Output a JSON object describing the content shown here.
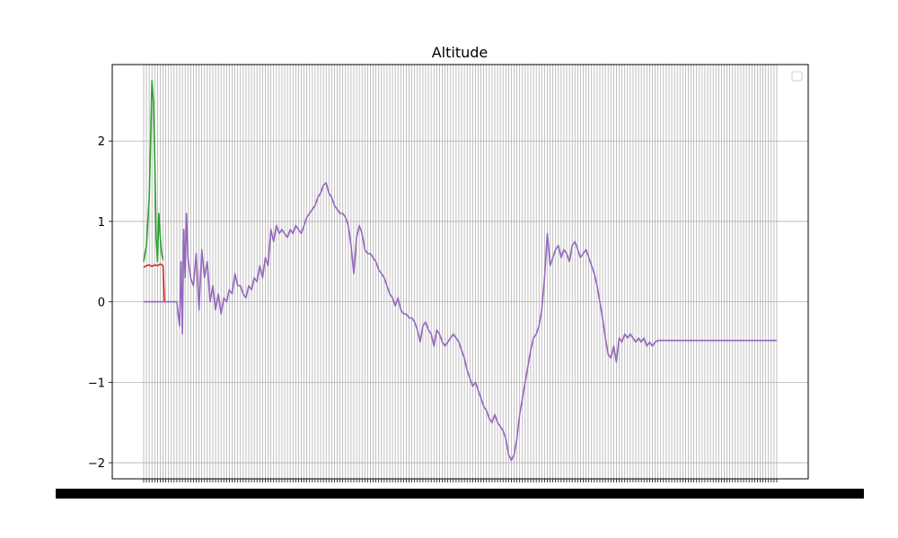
{
  "chart_data": {
    "type": "line",
    "title": "Altitude",
    "xlabel": "",
    "ylabel": "",
    "grid": true,
    "legend": "top-right",
    "ylim": [
      -2.2,
      2.95
    ],
    "y_ticks": [
      -2,
      -1,
      0,
      1,
      2
    ],
    "y_tick_labels": [
      "−2",
      "−1",
      "0",
      "1",
      "2"
    ],
    "x_tick_count": 230,
    "x_range": [
      0,
      229
    ],
    "series": [
      {
        "color": "#d62728",
        "points": [
          [
            0,
            0.43
          ],
          [
            1,
            0.45
          ],
          [
            2,
            0.46
          ],
          [
            3,
            0.44
          ],
          [
            4,
            0.46
          ],
          [
            5,
            0.45
          ],
          [
            6,
            0.47
          ],
          [
            7,
            0.45
          ],
          [
            7.5,
            0.0
          ]
        ]
      },
      {
        "color": "#2ca02c",
        "points": [
          [
            0,
            0.5
          ],
          [
            1,
            0.7
          ],
          [
            2,
            1.3
          ],
          [
            2.5,
            2.0
          ],
          [
            3,
            2.75
          ],
          [
            3.5,
            2.5
          ],
          [
            4,
            1.8
          ],
          [
            4.5,
            0.8
          ],
          [
            5,
            0.5
          ],
          [
            5.5,
            1.1
          ],
          [
            6,
            0.8
          ],
          [
            6.5,
            0.6
          ],
          [
            7,
            0.52
          ]
        ]
      },
      {
        "color": "#9467bd",
        "points": [
          [
            0,
            0.0
          ],
          [
            12,
            0.0
          ],
          [
            13,
            -0.3
          ],
          [
            13.5,
            0.5
          ],
          [
            14,
            -0.4
          ],
          [
            14.5,
            0.9
          ],
          [
            15,
            0.3
          ],
          [
            15.5,
            1.1
          ],
          [
            16,
            0.55
          ],
          [
            17,
            0.3
          ],
          [
            18,
            0.2
          ],
          [
            19,
            0.6
          ],
          [
            20,
            -0.1
          ],
          [
            21,
            0.65
          ],
          [
            22,
            0.3
          ],
          [
            23,
            0.5
          ],
          [
            24,
            0.0
          ],
          [
            25,
            0.2
          ],
          [
            26,
            -0.1
          ],
          [
            27,
            0.1
          ],
          [
            28,
            -0.15
          ],
          [
            29,
            0.05
          ],
          [
            30,
            0.0
          ],
          [
            31,
            0.15
          ],
          [
            32,
            0.1
          ],
          [
            33,
            0.35
          ],
          [
            34,
            0.2
          ],
          [
            35,
            0.2
          ],
          [
            36,
            0.1
          ],
          [
            37,
            0.05
          ],
          [
            38,
            0.2
          ],
          [
            39,
            0.15
          ],
          [
            40,
            0.3
          ],
          [
            41,
            0.25
          ],
          [
            42,
            0.45
          ],
          [
            43,
            0.3
          ],
          [
            44,
            0.55
          ],
          [
            45,
            0.45
          ],
          [
            46,
            0.9
          ],
          [
            47,
            0.75
          ],
          [
            48,
            0.95
          ],
          [
            49,
            0.85
          ],
          [
            50,
            0.9
          ],
          [
            51,
            0.85
          ],
          [
            52,
            0.8
          ],
          [
            53,
            0.9
          ],
          [
            54,
            0.85
          ],
          [
            55,
            0.95
          ],
          [
            56,
            0.9
          ],
          [
            57,
            0.85
          ],
          [
            58,
            0.95
          ],
          [
            59,
            1.05
          ],
          [
            60,
            1.1
          ],
          [
            61,
            1.15
          ],
          [
            62,
            1.2
          ],
          [
            63,
            1.3
          ],
          [
            64,
            1.35
          ],
          [
            65,
            1.45
          ],
          [
            66,
            1.48
          ],
          [
            67,
            1.35
          ],
          [
            68,
            1.3
          ],
          [
            69,
            1.2
          ],
          [
            70,
            1.15
          ],
          [
            71,
            1.1
          ],
          [
            72,
            1.1
          ],
          [
            73,
            1.05
          ],
          [
            74,
            0.95
          ],
          [
            75,
            0.7
          ],
          [
            76,
            0.35
          ],
          [
            77,
            0.8
          ],
          [
            78,
            0.95
          ],
          [
            79,
            0.85
          ],
          [
            80,
            0.65
          ],
          [
            81,
            0.6
          ],
          [
            82,
            0.6
          ],
          [
            83,
            0.55
          ],
          [
            84,
            0.5
          ],
          [
            85,
            0.4
          ],
          [
            86,
            0.35
          ],
          [
            87,
            0.3
          ],
          [
            88,
            0.2
          ],
          [
            89,
            0.1
          ],
          [
            90,
            0.05
          ],
          [
            91,
            -0.05
          ],
          [
            92,
            0.05
          ],
          [
            93,
            -0.1
          ],
          [
            94,
            -0.15
          ],
          [
            95,
            -0.15
          ],
          [
            96,
            -0.2
          ],
          [
            97,
            -0.2
          ],
          [
            98,
            -0.25
          ],
          [
            99,
            -0.35
          ],
          [
            100,
            -0.5
          ],
          [
            101,
            -0.3
          ],
          [
            102,
            -0.25
          ],
          [
            103,
            -0.35
          ],
          [
            104,
            -0.4
          ],
          [
            105,
            -0.55
          ],
          [
            106,
            -0.35
          ],
          [
            107,
            -0.4
          ],
          [
            108,
            -0.5
          ],
          [
            109,
            -0.55
          ],
          [
            110,
            -0.5
          ],
          [
            111,
            -0.45
          ],
          [
            112,
            -0.4
          ],
          [
            113,
            -0.45
          ],
          [
            114,
            -0.5
          ],
          [
            115,
            -0.6
          ],
          [
            116,
            -0.7
          ],
          [
            117,
            -0.85
          ],
          [
            118,
            -0.95
          ],
          [
            119,
            -1.05
          ],
          [
            120,
            -1.0
          ],
          [
            121,
            -1.1
          ],
          [
            122,
            -1.2
          ],
          [
            123,
            -1.3
          ],
          [
            124,
            -1.35
          ],
          [
            125,
            -1.45
          ],
          [
            126,
            -1.5
          ],
          [
            127,
            -1.4
          ],
          [
            128,
            -1.5
          ],
          [
            129,
            -1.55
          ],
          [
            130,
            -1.6
          ],
          [
            131,
            -1.7
          ],
          [
            132,
            -1.9
          ],
          [
            133,
            -1.97
          ],
          [
            134,
            -1.9
          ],
          [
            135,
            -1.7
          ],
          [
            136,
            -1.4
          ],
          [
            137,
            -1.2
          ],
          [
            138,
            -1.0
          ],
          [
            139,
            -0.8
          ],
          [
            140,
            -0.6
          ],
          [
            141,
            -0.45
          ],
          [
            142,
            -0.4
          ],
          [
            143,
            -0.3
          ],
          [
            144,
            -0.1
          ],
          [
            145,
            0.3
          ],
          [
            146,
            0.85
          ],
          [
            147,
            0.45
          ],
          [
            148,
            0.55
          ],
          [
            149,
            0.65
          ],
          [
            150,
            0.7
          ],
          [
            151,
            0.55
          ],
          [
            152,
            0.65
          ],
          [
            153,
            0.6
          ],
          [
            154,
            0.5
          ],
          [
            155,
            0.7
          ],
          [
            156,
            0.75
          ],
          [
            157,
            0.65
          ],
          [
            158,
            0.55
          ],
          [
            159,
            0.6
          ],
          [
            160,
            0.65
          ],
          [
            161,
            0.55
          ],
          [
            162,
            0.45
          ],
          [
            163,
            0.35
          ],
          [
            164,
            0.2
          ],
          [
            165,
            0.0
          ],
          [
            166,
            -0.2
          ],
          [
            167,
            -0.45
          ],
          [
            168,
            -0.65
          ],
          [
            169,
            -0.7
          ],
          [
            170,
            -0.55
          ],
          [
            171,
            -0.75
          ],
          [
            172,
            -0.45
          ],
          [
            173,
            -0.5
          ],
          [
            174,
            -0.4
          ],
          [
            175,
            -0.45
          ],
          [
            176,
            -0.4
          ],
          [
            177,
            -0.45
          ],
          [
            178,
            -0.5
          ],
          [
            179,
            -0.45
          ],
          [
            180,
            -0.5
          ],
          [
            181,
            -0.45
          ],
          [
            182,
            -0.55
          ],
          [
            183,
            -0.5
          ],
          [
            184,
            -0.55
          ],
          [
            185,
            -0.5
          ],
          [
            186,
            -0.48
          ],
          [
            229,
            -0.48
          ]
        ]
      }
    ]
  }
}
